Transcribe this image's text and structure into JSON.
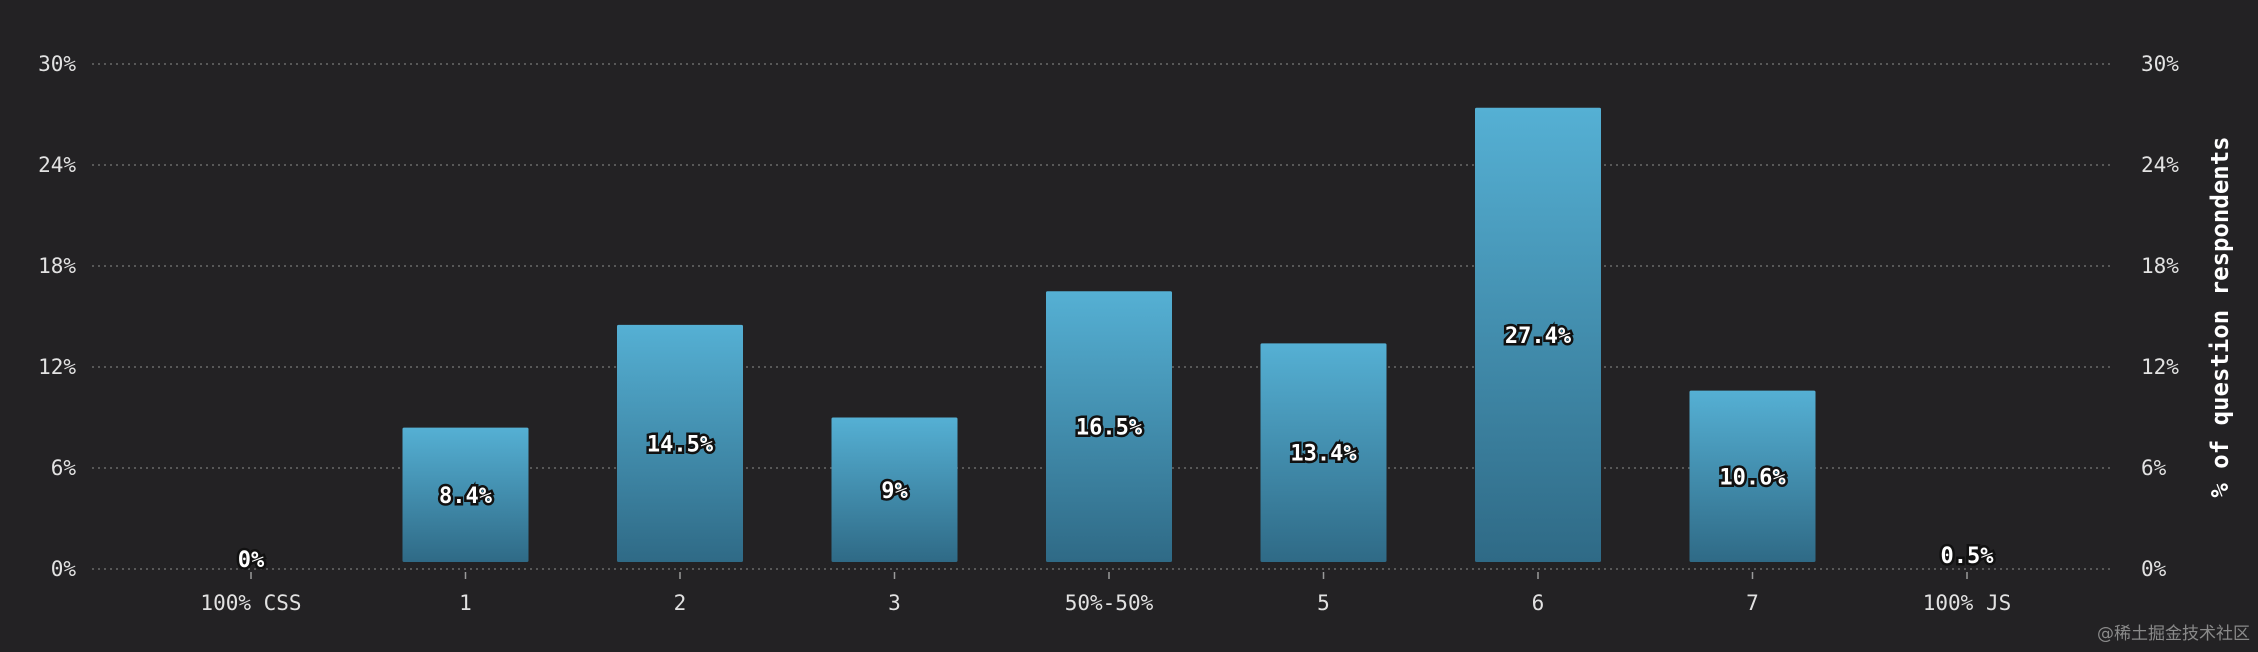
{
  "chart_data": {
    "type": "bar",
    "categories": [
      "100% CSS",
      "1",
      "2",
      "3",
      "50%-50%",
      "5",
      "6",
      "7",
      "100% JS"
    ],
    "values": [
      0,
      8.4,
      14.5,
      9,
      16.5,
      13.4,
      27.4,
      10.6,
      0.5
    ],
    "value_labels": [
      "0%",
      "8.4%",
      "14.5%",
      "9%",
      "16.5%",
      "13.4%",
      "27.4%",
      "10.6%",
      "0.5%"
    ],
    "ylabel": "% of question respondents",
    "ylim": [
      0,
      30
    ],
    "yticks": [
      0,
      6,
      12,
      18,
      24,
      30
    ],
    "ytick_labels": [
      "0%",
      "6%",
      "12%",
      "18%",
      "24%",
      "30%"
    ],
    "grid": true,
    "legend": "none",
    "colors": {
      "bar_top": "#55b0d4",
      "bar_bottom": "#2f6a86",
      "background": "#232224"
    }
  },
  "watermark": "@稀土掘金技术社区"
}
